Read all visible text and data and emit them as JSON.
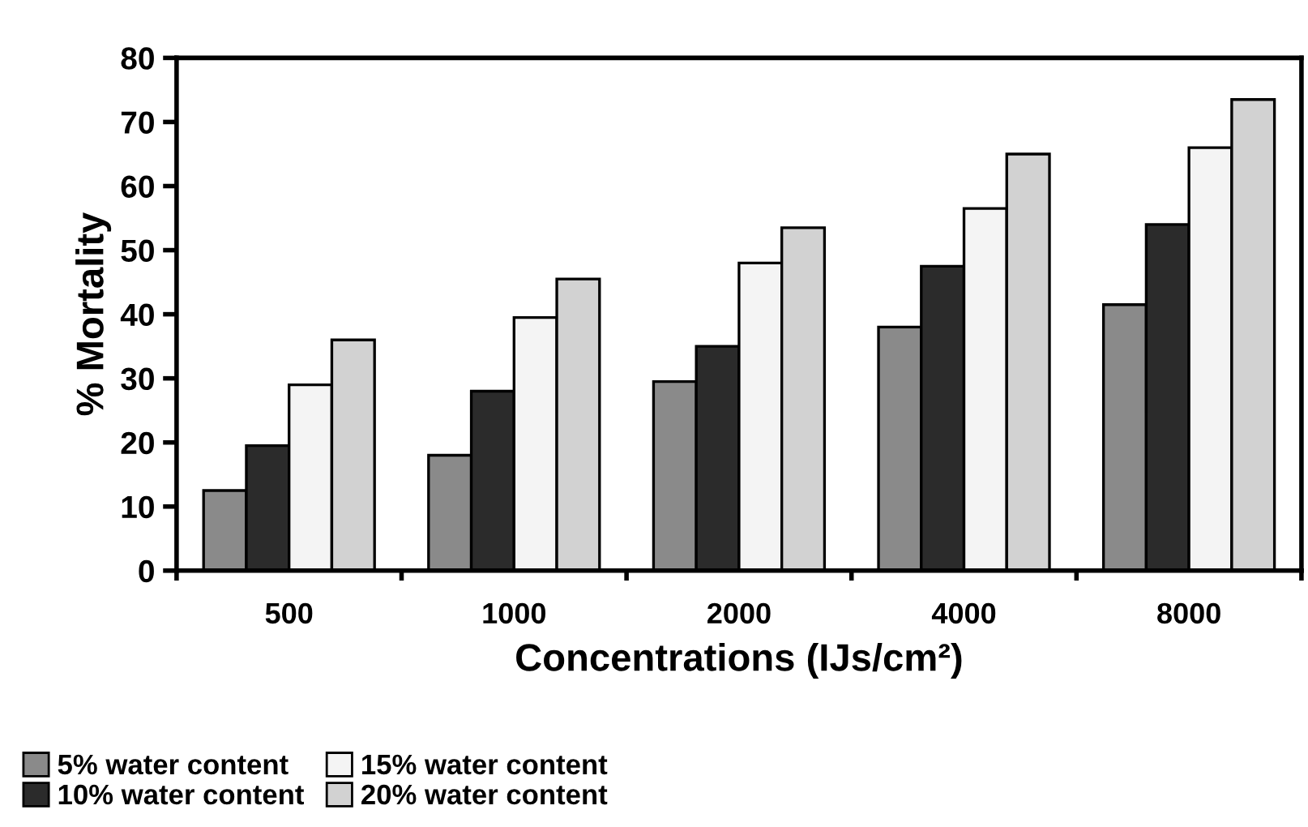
{
  "chart_data": {
    "type": "bar",
    "xlabel": "Concentrations (IJs/cm²)",
    "ylabel": "% Mortality",
    "categories": [
      "500",
      "1000",
      "2000",
      "4000",
      "8000"
    ],
    "series": [
      {
        "name": "5% water content",
        "color": "#8a8a8a",
        "values": [
          12.5,
          18,
          29.5,
          38,
          41.5
        ]
      },
      {
        "name": "10% water content",
        "color": "#2b2b2b",
        "values": [
          19.5,
          28,
          35,
          47.5,
          54
        ]
      },
      {
        "name": "15% water content",
        "color": "#f4f4f4",
        "values": [
          29,
          39.5,
          48,
          56.5,
          66
        ]
      },
      {
        "name": "20% water content",
        "color": "#d2d2d2",
        "values": [
          36,
          45.5,
          53.5,
          65,
          73.5
        ]
      }
    ],
    "ylim": [
      0,
      80
    ],
    "yticks": [
      0,
      10,
      20,
      30,
      40,
      50,
      60,
      70,
      80
    ],
    "grid": false,
    "legend": "bottom left"
  }
}
